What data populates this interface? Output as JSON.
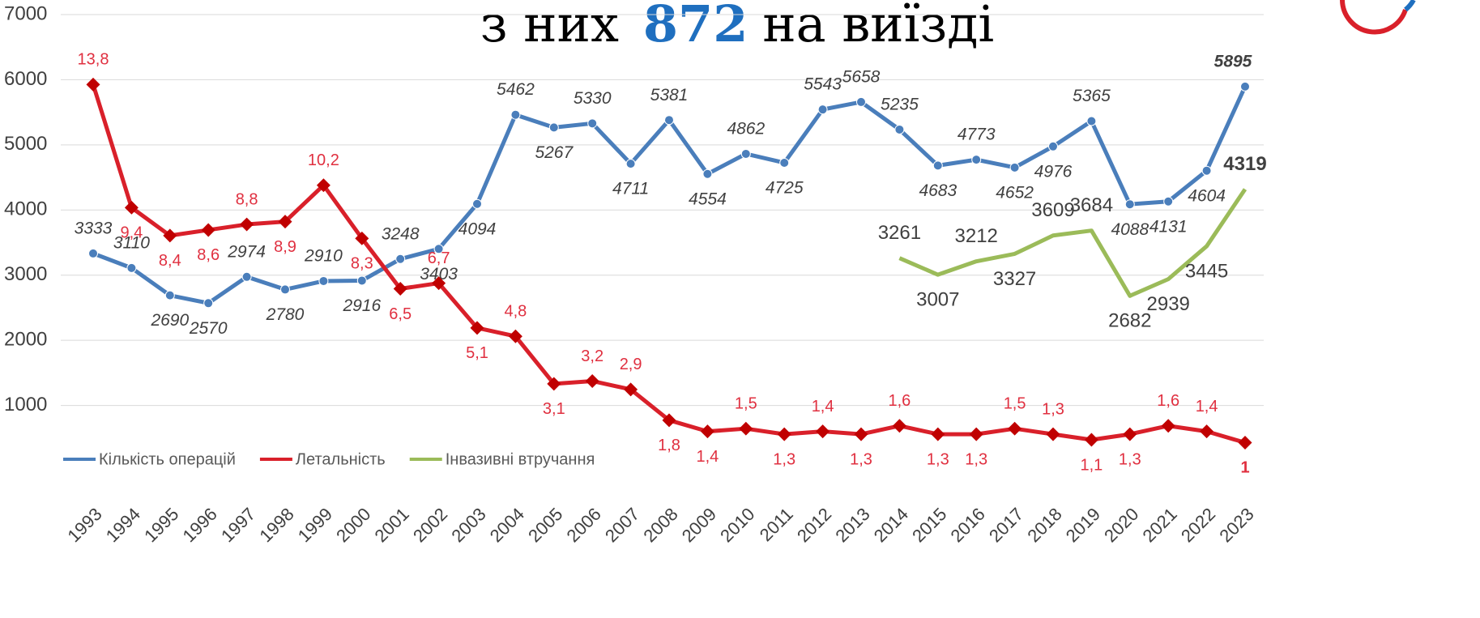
{
  "chart_data": {
    "type": "line",
    "title_parts": [
      "з них",
      "872",
      "на виїзді"
    ],
    "categories": [
      "1993",
      "1994",
      "1995",
      "1996",
      "1997",
      "1998",
      "1999",
      "2000",
      "2001",
      "2002",
      "2003",
      "2004",
      "2005",
      "2006",
      "2007",
      "2008",
      "2009",
      "2010",
      "2011",
      "2012",
      "2013",
      "2014",
      "2015",
      "2016",
      "2017",
      "2018",
      "2019",
      "2020",
      "2021",
      "2022",
      "2023"
    ],
    "ylim": [
      0,
      7000
    ],
    "yticks": [
      1000,
      2000,
      3000,
      4000,
      5000,
      6000,
      7000
    ],
    "y2lim": [
      0,
      16.3
    ],
    "grid": true,
    "legend": "bottom-left",
    "series": [
      {
        "name": "Кількість операцій",
        "color": "#4a7ebb",
        "values": [
          3333,
          3110,
          2690,
          2570,
          2974,
          2780,
          2910,
          2916,
          3248,
          3403,
          4094,
          5462,
          5267,
          5330,
          4711,
          5381,
          4554,
          4862,
          4725,
          5543,
          5658,
          5235,
          4683,
          4773,
          4652,
          4976,
          5365,
          4088,
          4131,
          4604,
          5895
        ]
      },
      {
        "name": "Летальність",
        "color": "#d9202a",
        "axis": "y2",
        "values": [
          13.8,
          9.4,
          8.4,
          8.6,
          8.8,
          8.9,
          10.2,
          8.3,
          6.5,
          6.7,
          5.1,
          4.8,
          3.1,
          3.2,
          2.9,
          1.8,
          1.4,
          1.5,
          1.3,
          1.4,
          1.3,
          1.6,
          1.3,
          1.3,
          1.5,
          1.3,
          1.1,
          1.3,
          1.6,
          1.4,
          1
        ],
        "value_labels": [
          "13,8",
          "9,4",
          "8,4",
          "8,6",
          "8,8",
          "8,9",
          "10,2",
          "8,3",
          "6,5",
          "6,7",
          "5,1",
          "4,8",
          "3,1",
          "3,2",
          "2,9",
          "1,8",
          "1,4",
          "1,5",
          "1,3",
          "1,4",
          "1,3",
          "1,6",
          "1,3",
          "1,3",
          "1,5",
          "1,3",
          "1,1",
          "1,3",
          "1,6",
          "1,4",
          "1"
        ]
      },
      {
        "name": "Інвазивні втручання",
        "color": "#9bbb59",
        "values": [
          null,
          null,
          null,
          null,
          null,
          null,
          null,
          null,
          null,
          null,
          null,
          null,
          null,
          null,
          null,
          null,
          null,
          null,
          null,
          null,
          null,
          3261,
          3007,
          3212,
          3327,
          3609,
          3684,
          2682,
          2939,
          3445,
          4319
        ]
      }
    ]
  }
}
